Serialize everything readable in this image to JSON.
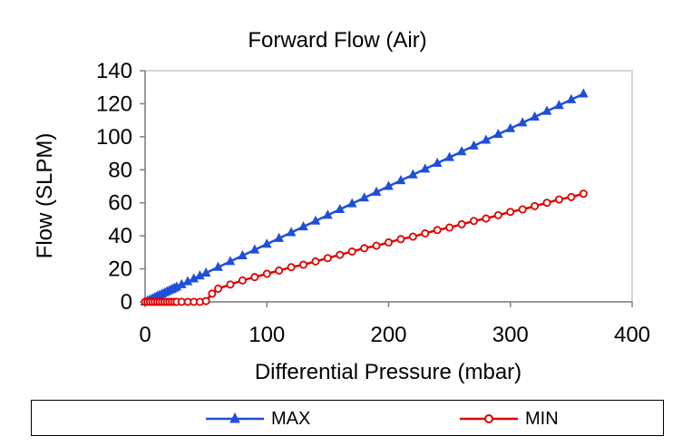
{
  "chart_data": {
    "type": "line",
    "title": "Forward Flow (Air)",
    "xlabel": "Differential Pressure (mbar)",
    "ylabel": "Flow (SLPM)",
    "xlim": [
      0,
      400
    ],
    "ylim": [
      0,
      140
    ],
    "xticks": [
      0,
      100,
      200,
      300,
      400
    ],
    "yticks": [
      0,
      20,
      40,
      60,
      80,
      100,
      120,
      140
    ],
    "grid": false,
    "legend_position": "bottom",
    "series": [
      {
        "name": "MAX",
        "color": "#1f4fd8",
        "marker": "triangle",
        "x": [
          0,
          2,
          4,
          6,
          8,
          10,
          12,
          14,
          16,
          18,
          20,
          22,
          24,
          26,
          30,
          35,
          40,
          45,
          50,
          60,
          70,
          80,
          90,
          100,
          110,
          120,
          130,
          140,
          150,
          160,
          170,
          180,
          190,
          200,
          210,
          220,
          230,
          240,
          250,
          260,
          270,
          280,
          290,
          300,
          310,
          320,
          330,
          340,
          350,
          360
        ],
        "y": [
          0,
          0.7,
          1.4,
          2.1,
          2.8,
          3.5,
          4.2,
          4.9,
          5.6,
          6.3,
          7,
          7.7,
          8.4,
          9.1,
          10.5,
          12.3,
          14,
          15.8,
          17.5,
          21,
          24.5,
          28,
          31.5,
          35,
          38.5,
          42,
          45.5,
          49,
          52.5,
          56,
          59.5,
          63,
          66.5,
          70,
          73.5,
          77,
          80.5,
          84,
          87.5,
          91,
          94.5,
          98,
          101.5,
          105,
          108.5,
          112,
          115.5,
          119,
          122.5,
          126
        ]
      },
      {
        "name": "MIN",
        "color": "#e00000",
        "marker": "circle",
        "x": [
          0,
          2,
          4,
          6,
          8,
          10,
          12,
          14,
          16,
          18,
          20,
          22,
          24,
          26,
          30,
          35,
          40,
          45,
          50,
          55,
          60,
          70,
          80,
          90,
          100,
          110,
          120,
          130,
          140,
          150,
          160,
          170,
          180,
          190,
          200,
          210,
          220,
          230,
          240,
          250,
          260,
          270,
          280,
          290,
          300,
          310,
          320,
          330,
          340,
          350,
          360
        ],
        "y": [
          0,
          0,
          0,
          0,
          0,
          0,
          0,
          0,
          0,
          0,
          0,
          0,
          0,
          0,
          0,
          0,
          0,
          0,
          0.5,
          5,
          8,
          10.5,
          13,
          15,
          17,
          19,
          21,
          22.5,
          24.5,
          26.5,
          28.5,
          30.5,
          32.5,
          34,
          36,
          38,
          39.5,
          41.5,
          43.5,
          45,
          47,
          49,
          50.5,
          52.5,
          54.5,
          56,
          58,
          60,
          62,
          63.5,
          65.5
        ]
      }
    ]
  }
}
